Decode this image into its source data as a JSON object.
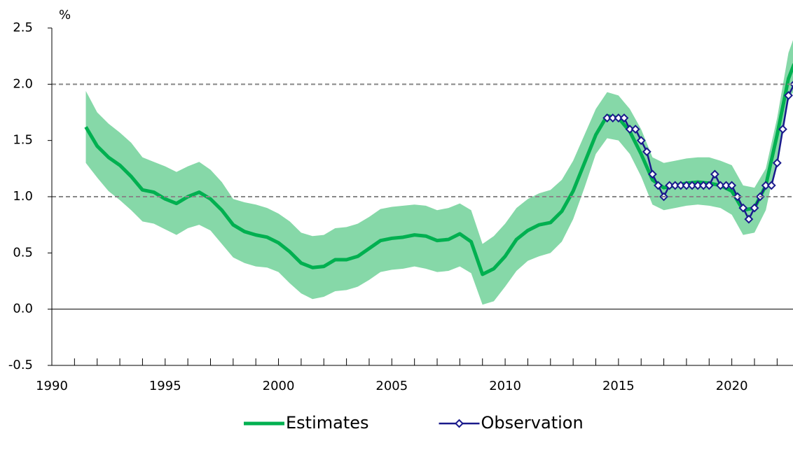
{
  "chart_data": {
    "type": "line",
    "y_label": "%",
    "xlim": [
      1990,
      2022.7
    ],
    "xticks": [
      1990,
      1995,
      2000,
      2005,
      2010,
      2015,
      2020
    ],
    "xminor": [
      1991,
      1992,
      1993,
      1994,
      1996,
      1997,
      1998,
      1999,
      2001,
      2002,
      2003,
      2004,
      2006,
      2007,
      2008,
      2009,
      2011,
      2012,
      2013,
      2014,
      2016,
      2017,
      2018,
      2019,
      2021,
      2022
    ],
    "ylim": [
      -0.5,
      2.5
    ],
    "yticks": [
      -0.5,
      {
        "value": 0,
        "label": "0.0"
      },
      0.5,
      {
        "value": 1,
        "label": "1.0"
      },
      1.5,
      {
        "value": 2,
        "label": "2.0"
      },
      2.5
    ],
    "hlines": [
      {
        "y": 0,
        "style": "solid"
      },
      {
        "y": 1,
        "style": "dashed"
      },
      {
        "y": 2,
        "style": "dashed"
      }
    ],
    "band": {
      "color": "#86d8a8",
      "x": [
        1991.5,
        1992,
        1992.5,
        1993,
        1993.5,
        1994,
        1994.5,
        1995,
        1995.5,
        1996,
        1996.5,
        1997,
        1997.5,
        1998,
        1998.5,
        1999,
        1999.5,
        2000,
        2000.5,
        2001,
        2001.5,
        2002,
        2002.5,
        2003,
        2003.5,
        2004,
        2004.5,
        2005,
        2005.5,
        2006,
        2006.5,
        2007,
        2007.5,
        2008,
        2008.5,
        2009,
        2009.5,
        2010,
        2010.5,
        2011,
        2011.5,
        2012,
        2012.5,
        2013,
        2013.5,
        2014,
        2014.5,
        2015,
        2015.5,
        2016,
        2016.5,
        2017,
        2017.5,
        2018,
        2018.5,
        2019,
        2019.5,
        2020,
        2020.5,
        2021,
        2021.5,
        2022,
        2022.5,
        2022.75
      ],
      "upper": [
        1.94,
        1.75,
        1.65,
        1.57,
        1.48,
        1.35,
        1.31,
        1.27,
        1.22,
        1.27,
        1.31,
        1.24,
        1.13,
        0.98,
        0.95,
        0.93,
        0.9,
        0.85,
        0.78,
        0.68,
        0.65,
        0.66,
        0.72,
        0.73,
        0.76,
        0.82,
        0.89,
        0.91,
        0.92,
        0.93,
        0.92,
        0.88,
        0.9,
        0.94,
        0.88,
        0.58,
        0.65,
        0.76,
        0.9,
        0.98,
        1.03,
        1.06,
        1.15,
        1.32,
        1.55,
        1.78,
        1.93,
        1.9,
        1.78,
        1.6,
        1.35,
        1.3,
        1.32,
        1.34,
        1.35,
        1.35,
        1.32,
        1.28,
        1.1,
        1.08,
        1.25,
        1.7,
        2.28,
        2.42
      ],
      "lower": [
        1.3,
        1.17,
        1.05,
        0.97,
        0.88,
        0.78,
        0.76,
        0.71,
        0.66,
        0.72,
        0.75,
        0.7,
        0.58,
        0.46,
        0.41,
        0.38,
        0.37,
        0.33,
        0.23,
        0.14,
        0.09,
        0.11,
        0.16,
        0.17,
        0.2,
        0.26,
        0.33,
        0.35,
        0.36,
        0.38,
        0.36,
        0.33,
        0.34,
        0.38,
        0.32,
        0.04,
        0.07,
        0.2,
        0.34,
        0.43,
        0.47,
        0.5,
        0.6,
        0.8,
        1.08,
        1.38,
        1.52,
        1.5,
        1.38,
        1.18,
        0.93,
        0.88,
        0.9,
        0.92,
        0.93,
        0.92,
        0.9,
        0.84,
        0.66,
        0.68,
        0.88,
        1.35,
        1.85,
        1.95
      ]
    },
    "series": [
      {
        "name": "Estimates",
        "color": "#00b050",
        "markers": false,
        "x": [
          1991.5,
          1992,
          1992.5,
          1993,
          1993.5,
          1994,
          1994.5,
          1995,
          1995.5,
          1996,
          1996.5,
          1997,
          1997.5,
          1998,
          1998.5,
          1999,
          1999.5,
          2000,
          2000.5,
          2001,
          2001.5,
          2002,
          2002.5,
          2003,
          2003.5,
          2004,
          2004.5,
          2005,
          2005.5,
          2006,
          2006.5,
          2007,
          2007.5,
          2008,
          2008.5,
          2009,
          2009.5,
          2010,
          2010.5,
          2011,
          2011.5,
          2012,
          2012.5,
          2013,
          2013.5,
          2014,
          2014.5,
          2015,
          2015.5,
          2016,
          2016.5,
          2017,
          2017.5,
          2018,
          2018.5,
          2019,
          2019.5,
          2020,
          2020.5,
          2021,
          2021.5,
          2022,
          2022.5,
          2022.75
        ],
        "values": [
          1.62,
          1.45,
          1.35,
          1.28,
          1.18,
          1.06,
          1.04,
          0.98,
          0.94,
          1.0,
          1.04,
          0.98,
          0.88,
          0.75,
          0.69,
          0.66,
          0.64,
          0.59,
          0.51,
          0.41,
          0.37,
          0.38,
          0.44,
          0.44,
          0.47,
          0.54,
          0.61,
          0.63,
          0.64,
          0.66,
          0.65,
          0.61,
          0.62,
          0.67,
          0.6,
          0.31,
          0.36,
          0.47,
          0.62,
          0.7,
          0.75,
          0.77,
          0.87,
          1.05,
          1.3,
          1.55,
          1.72,
          1.7,
          1.58,
          1.38,
          1.15,
          1.08,
          1.1,
          1.12,
          1.13,
          1.12,
          1.1,
          1.05,
          0.88,
          0.9,
          1.1,
          1.55,
          2.05,
          2.18
        ]
      },
      {
        "name": "Observation",
        "color": "#1a1a8c",
        "markers": true,
        "x": [
          2014.5,
          2014.75,
          2015,
          2015.25,
          2015.5,
          2015.75,
          2016,
          2016.25,
          2016.5,
          2016.75,
          2017,
          2017.25,
          2017.5,
          2017.75,
          2018,
          2018.25,
          2018.5,
          2018.75,
          2019,
          2019.25,
          2019.5,
          2019.75,
          2020,
          2020.25,
          2020.5,
          2020.75,
          2021,
          2021.25,
          2021.5,
          2021.75,
          2022,
          2022.25,
          2022.5,
          2022.75
        ],
        "values": [
          1.7,
          1.7,
          1.7,
          1.7,
          1.6,
          1.6,
          1.5,
          1.4,
          1.2,
          1.1,
          1.0,
          1.1,
          1.1,
          1.1,
          1.1,
          1.1,
          1.1,
          1.1,
          1.1,
          1.2,
          1.1,
          1.1,
          1.1,
          1.0,
          0.9,
          0.8,
          0.9,
          1.0,
          1.1,
          1.1,
          1.3,
          1.6,
          1.9,
          2.0
        ]
      }
    ]
  }
}
